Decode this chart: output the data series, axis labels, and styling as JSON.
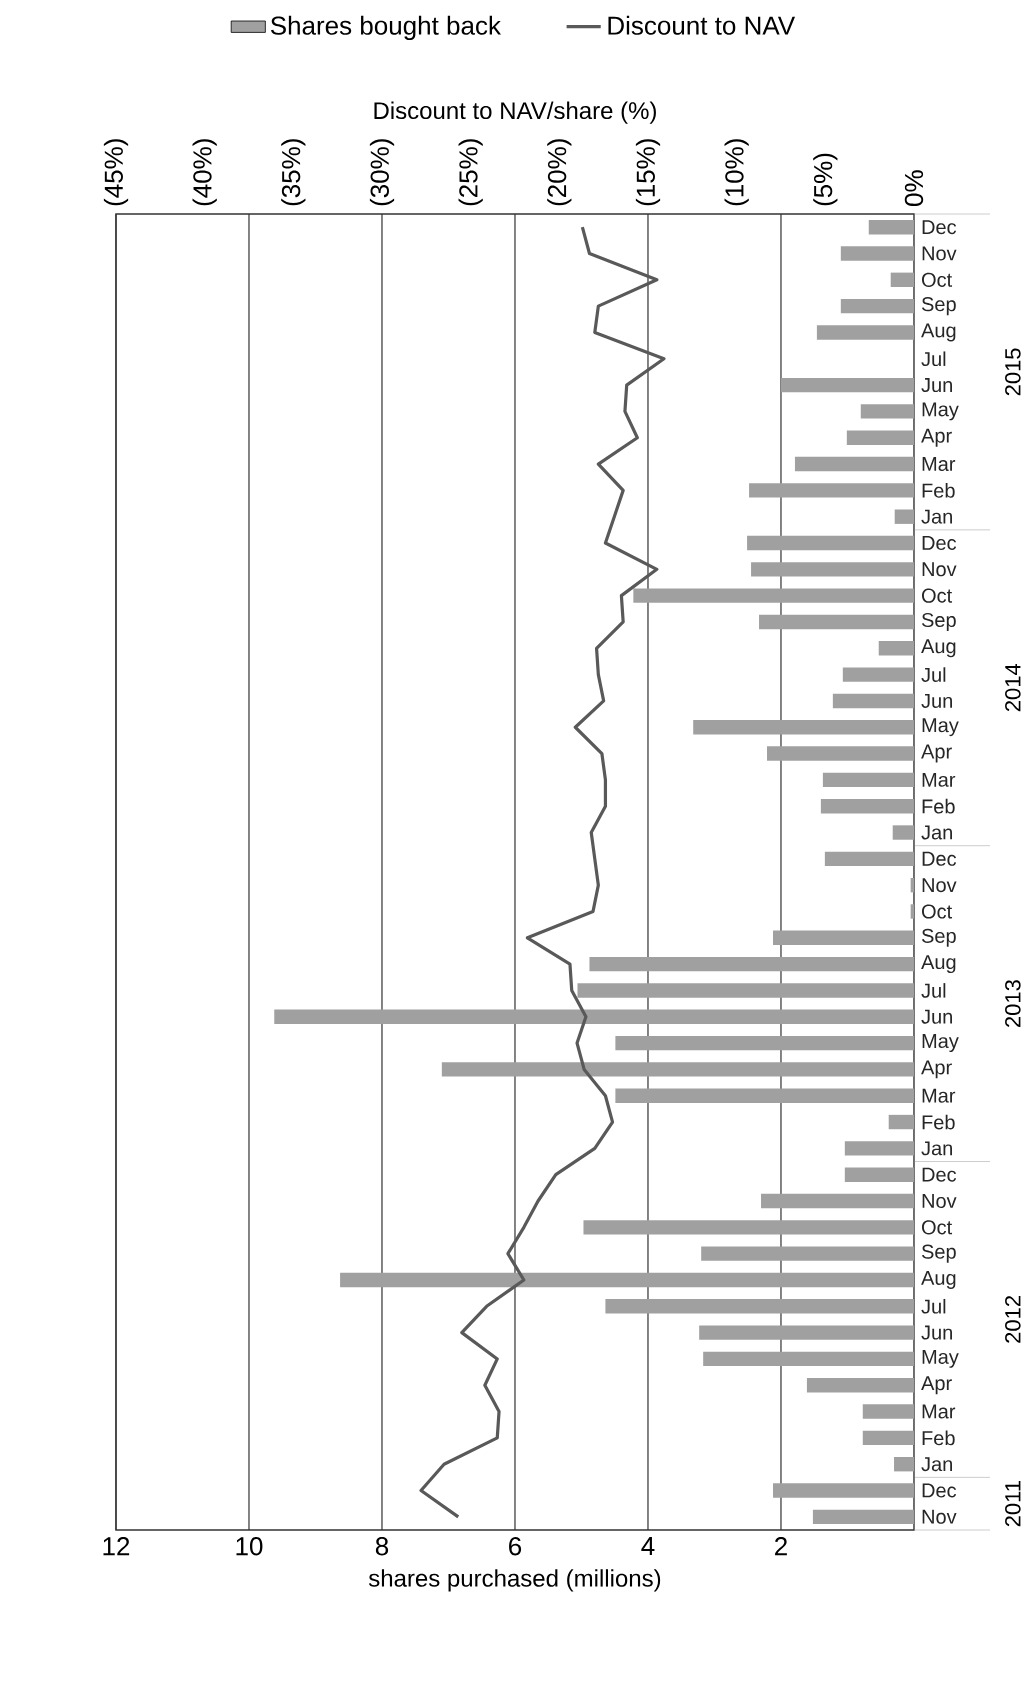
{
  "chart_data": {
    "type": "bar",
    "orientation": "horizontal",
    "xlabel": "shares purchased (millions)",
    "x2label": "Discount to NAV/share (%)",
    "categories": [
      "Dec",
      "Nov",
      "Oct",
      "Sep",
      "Aug",
      "Jul",
      "Jun",
      "May",
      "Apr",
      "Mar",
      "Feb",
      "Jan",
      "Dec",
      "Nov",
      "Oct",
      "Sep",
      "Aug",
      "Jul",
      "Jun",
      "May",
      "Apr",
      "Mar",
      "Feb",
      "Jan",
      "Dec",
      "Nov",
      "Oct",
      "Sep",
      "Aug",
      "Jul",
      "Jun",
      "May",
      "Apr",
      "Mar",
      "Feb",
      "Jan",
      "Dec",
      "Nov",
      "Oct",
      "Sep",
      "Aug",
      "Jul",
      "Jun",
      "May",
      "Apr",
      "Mar",
      "Feb",
      "Jan",
      "Dec",
      "Nov"
    ],
    "annotations": [
      "2015",
      "2014",
      "2013",
      "2012",
      "2011"
    ],
    "xlim": [
      12,
      0
    ],
    "xticks": [
      12,
      10,
      8,
      6,
      4,
      2
    ],
    "x2lim": [
      -45,
      0
    ],
    "x2ticks": [
      {
        "value": -45,
        "label": "(45%)"
      },
      {
        "value": -40,
        "label": "(40%)"
      },
      {
        "value": -35,
        "label": "(35%)"
      },
      {
        "value": -30,
        "label": "(30%)"
      },
      {
        "value": -25,
        "label": "(25%)"
      },
      {
        "value": -20,
        "label": "(20%)"
      },
      {
        "value": -15,
        "label": "(15%)"
      },
      {
        "value": -10,
        "label": "(10%)"
      },
      {
        "value": -5,
        "label": "(5%)"
      },
      {
        "value": 0,
        "label": "0%"
      }
    ],
    "grid": "x",
    "legend": "top",
    "marker": "none",
    "line_style": "solid",
    "series": [
      {
        "name": "Shares bought back",
        "color": "#a0a0a0",
        "values": [
          0.68,
          1.1,
          0.35,
          1.1,
          1.46,
          0,
          2.0,
          0.8,
          1.01,
          1.79,
          2.48,
          0.29,
          2.51,
          2.45,
          4.22,
          2.33,
          0.53,
          1.07,
          1.22,
          3.32,
          2.21,
          1.37,
          1.4,
          0.32,
          1.34,
          0.05,
          0.05,
          2.12,
          4.88,
          5.06,
          9.62,
          4.49,
          7.1,
          4.49,
          0.38,
          1.04,
          1.04,
          2.3,
          4.97,
          3.2,
          8.63,
          4.64,
          3.23,
          3.17,
          1.61,
          0.77,
          0.77,
          0.3,
          2.12,
          1.52
        ]
      },
      {
        "name": "Discount to NAV",
        "type": "line",
        "axis": "x2",
        "color": "#595959",
        "values": [
          -18.7,
          -18.3,
          -14.5,
          -17.8,
          -18.0,
          -14.1,
          -16.2,
          -16.3,
          -15.6,
          -17.8,
          -16.4,
          -16.9,
          -17.4,
          -14.5,
          -16.5,
          -16.4,
          -17.9,
          -17.8,
          -17.5,
          -19.1,
          -17.6,
          -17.4,
          -17.4,
          -18.2,
          -18.0,
          -17.8,
          -18.1,
          -21.8,
          -19.4,
          -19.3,
          -18.5,
          -19.0,
          -18.6,
          -17.4,
          -17.0,
          -18.0,
          -20.2,
          -21.2,
          -22.0,
          -22.9,
          -22.0,
          -24.1,
          -25.5,
          -23.5,
          -24.2,
          -23.4,
          -23.5,
          -26.5,
          -27.8,
          -25.7
        ]
      }
    ]
  }
}
